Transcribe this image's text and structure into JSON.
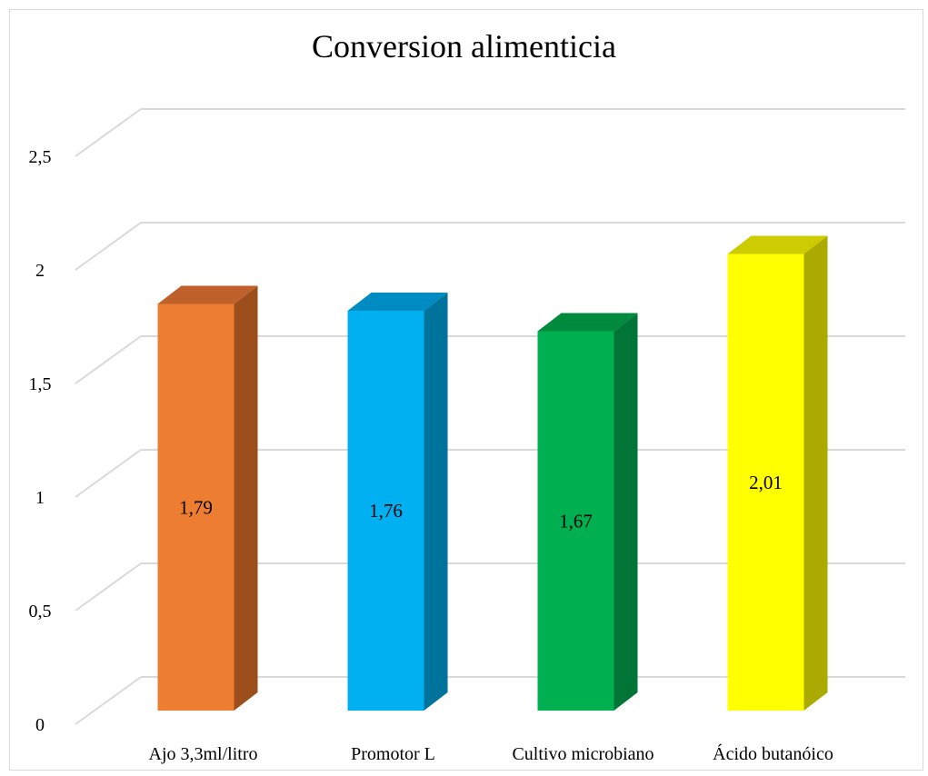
{
  "chart_data": {
    "type": "bar",
    "title": "Conversion alimenticia",
    "xlabel": "",
    "ylabel": "",
    "ylim": [
      0,
      2.5
    ],
    "yticks": [
      "0",
      "0,5",
      "1",
      "1,5",
      "2",
      "2,5"
    ],
    "ytick_values": [
      0,
      0.5,
      1,
      1.5,
      2,
      2.5
    ],
    "grid": true,
    "legend": "none",
    "three_d": true,
    "categories": [
      "Ajo 3,3ml/litro",
      "Promotor L",
      "Cultivo microbiano",
      "Ácido butanóico"
    ],
    "values": [
      1.79,
      1.76,
      1.67,
      2.01
    ],
    "data_labels": [
      "1,79",
      "1,76",
      "1,67",
      "2,01"
    ],
    "colors": [
      {
        "front": "#ED7D31",
        "side": "#9C4F1C",
        "top": "#C0602A"
      },
      {
        "front": "#00B0F0",
        "side": "#00739C",
        "top": "#008CC2"
      },
      {
        "front": "#00B050",
        "side": "#007535",
        "top": "#008A3E"
      },
      {
        "front": "#FFFF00",
        "side": "#AAAA00",
        "top": "#CCCC00"
      }
    ],
    "grid_color": "#d9d9d9"
  }
}
